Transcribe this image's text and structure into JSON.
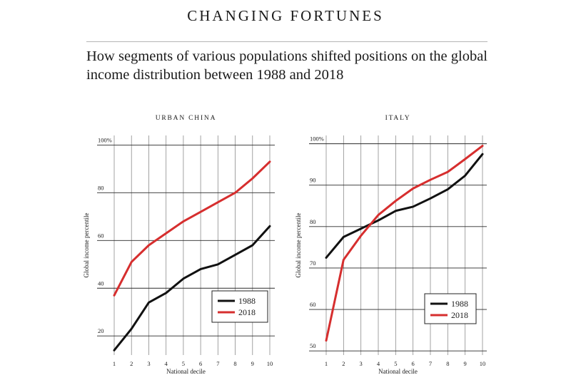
{
  "header": {
    "title": "CHANGING FORTUNES",
    "subtitle": "How segments of various populations shifted positions on the global income distribution between 1988 and 2018"
  },
  "colors": {
    "series_1988": "#111111",
    "series_2018": "#d62e2e",
    "grid": "#8c8c8c"
  },
  "chart_data": [
    {
      "type": "line",
      "title": "URBAN CHINA",
      "xlabel": "National decile",
      "ylabel": "Global income percentile",
      "x": [
        1,
        2,
        3,
        4,
        5,
        6,
        7,
        8,
        9,
        10
      ],
      "x_tick_labels": [
        "1",
        "2",
        "3",
        "4",
        "5",
        "6",
        "7",
        "8",
        "9",
        "10"
      ],
      "y_ticks": [
        20,
        40,
        60,
        80,
        100
      ],
      "y_tick_labels": [
        "20",
        "40",
        "60",
        "80",
        "100%"
      ],
      "ylim": [
        12,
        104
      ],
      "grid": true,
      "legend_position": "bottom-right",
      "series": [
        {
          "name": "1988",
          "values": [
            14,
            23,
            34,
            38,
            44,
            48,
            50,
            54,
            58,
            66
          ]
        },
        {
          "name": "2018",
          "values": [
            37,
            51,
            58,
            63,
            68,
            72,
            76,
            80,
            86,
            93
          ]
        }
      ]
    },
    {
      "type": "line",
      "title": "ITALY",
      "xlabel": "National decile",
      "ylabel": "Global income percentile",
      "x": [
        1,
        2,
        3,
        4,
        5,
        6,
        7,
        8,
        9,
        10
      ],
      "x_tick_labels": [
        "1",
        "2",
        "3",
        "4",
        "5",
        "6",
        "7",
        "8",
        "9",
        "10"
      ],
      "y_ticks": [
        50,
        60,
        70,
        80,
        90,
        100
      ],
      "y_tick_labels": [
        "50",
        "60",
        "70",
        "80",
        "90",
        "100%"
      ],
      "ylim": [
        49,
        102
      ],
      "grid": true,
      "legend_position": "bottom-right",
      "series": [
        {
          "name": "1988",
          "values": [
            72.5,
            77.5,
            79.5,
            81.5,
            83.8,
            84.8,
            86.8,
            89,
            92.3,
            97.5
          ]
        },
        {
          "name": "2018",
          "values": [
            52.5,
            72,
            77.8,
            82.8,
            86.2,
            89.2,
            91.3,
            93.2,
            96.3,
            99.5
          ]
        }
      ]
    }
  ]
}
